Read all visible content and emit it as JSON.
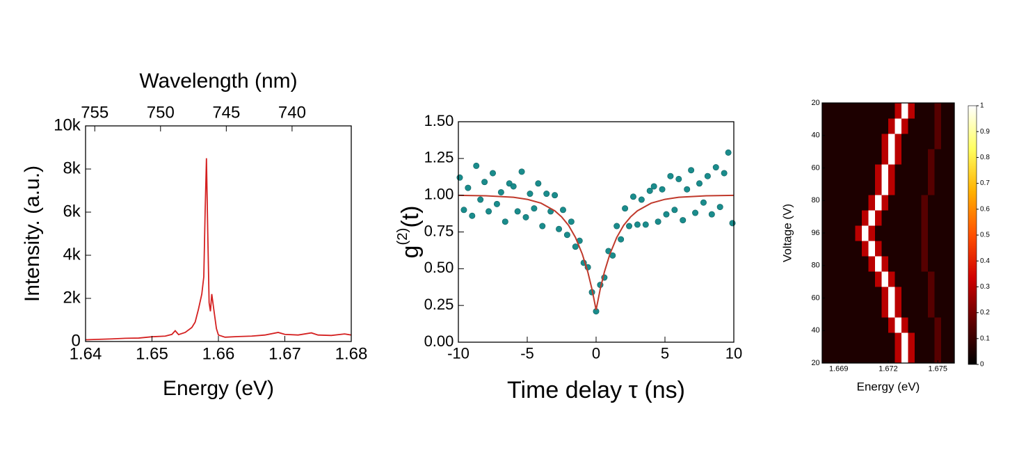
{
  "chart_data": [
    {
      "type": "line",
      "title": "Wavelength (nm)",
      "x_label": "Energy (eV)",
      "y_label": "Intensity. (a.u.)",
      "color": "#d42020",
      "x": [
        1.64,
        1.642,
        1.644,
        1.646,
        1.648,
        1.65,
        1.652,
        1.653,
        1.6535,
        1.654,
        1.655,
        1.656,
        1.6565,
        1.657,
        1.6575,
        1.6578,
        1.658,
        1.6582,
        1.6584,
        1.6586,
        1.6588,
        1.659,
        1.6593,
        1.6597,
        1.66,
        1.661,
        1.663,
        1.665,
        1.667,
        1.669,
        1.67,
        1.672,
        1.674,
        1.675,
        1.677,
        1.679,
        1.68
      ],
      "values": [
        80,
        100,
        120,
        150,
        160,
        220,
        250,
        330,
        500,
        320,
        420,
        650,
        900,
        1500,
        2200,
        3000,
        6000,
        8500,
        5000,
        1800,
        1400,
        2200,
        1500,
        600,
        300,
        200,
        230,
        250,
        300,
        420,
        330,
        300,
        400,
        300,
        280,
        350,
        300
      ],
      "xlim": [
        1.64,
        1.68
      ],
      "xticks": [
        1.64,
        1.65,
        1.66,
        1.67,
        1.68
      ],
      "ylim": [
        0,
        10000
      ],
      "yticks": [
        0,
        {
          "value": 2000,
          "label": "2k"
        },
        {
          "value": 4000,
          "label": "4k"
        },
        {
          "value": 6000,
          "label": "6k"
        },
        {
          "value": 8000,
          "label": "8k"
        },
        {
          "value": 10000,
          "label": "10k"
        }
      ],
      "x2lim": [
        755.7,
        735.5
      ],
      "x2ticks": [
        755,
        750,
        745,
        740
      ]
    },
    {
      "type": "scatter",
      "x_label": "Time delay τ (ns)",
      "y_label": {
        "base": "g",
        "sup": "(2)",
        "rest": "(t)"
      },
      "points": {
        "color": "#1a8c8c",
        "x": [
          -9.9,
          -9.6,
          -9.3,
          -9.0,
          -8.7,
          -8.4,
          -8.1,
          -7.8,
          -7.5,
          -7.2,
          -6.9,
          -6.6,
          -6.3,
          -6.0,
          -5.7,
          -5.4,
          -5.1,
          -4.8,
          -4.5,
          -4.2,
          -3.9,
          -3.6,
          -3.3,
          -3.0,
          -2.7,
          -2.4,
          -2.1,
          -1.8,
          -1.5,
          -1.2,
          -0.9,
          -0.6,
          -0.3,
          0,
          0.3,
          0.6,
          0.9,
          1.2,
          1.5,
          1.8,
          2.1,
          2.4,
          2.7,
          3.0,
          3.3,
          3.6,
          3.9,
          4.2,
          4.5,
          4.8,
          5.1,
          5.4,
          5.7,
          6.0,
          6.3,
          6.6,
          6.9,
          7.2,
          7.5,
          7.8,
          8.1,
          8.4,
          8.7,
          9.0,
          9.3,
          9.6,
          9.9
        ],
        "values": [
          1.12,
          0.9,
          1.05,
          0.86,
          1.2,
          0.97,
          1.09,
          0.89,
          1.15,
          0.94,
          1.02,
          0.82,
          1.08,
          1.06,
          0.89,
          1.16,
          0.85,
          1.01,
          0.91,
          1.08,
          0.79,
          1.01,
          0.89,
          1.0,
          0.77,
          0.9,
          0.73,
          0.82,
          0.65,
          0.69,
          0.54,
          0.51,
          0.34,
          0.21,
          0.39,
          0.44,
          0.62,
          0.59,
          0.79,
          0.7,
          0.91,
          0.79,
          0.99,
          0.8,
          0.97,
          0.8,
          1.03,
          1.06,
          0.82,
          1.04,
          0.87,
          1.13,
          0.9,
          1.11,
          0.83,
          1.04,
          1.17,
          0.88,
          1.08,
          0.95,
          1.13,
          0.87,
          1.19,
          0.92,
          1.15,
          1.29,
          0.81
        ]
      },
      "fit": {
        "color": "#c0392b",
        "x": [
          -10,
          -8,
          -6,
          -5,
          -4,
          -3,
          -2.5,
          -2,
          -1.5,
          -1,
          -0.6,
          -0.3,
          0,
          0.3,
          0.6,
          1,
          1.5,
          2,
          2.5,
          3,
          4,
          5,
          6,
          8,
          10
        ],
        "values": [
          0.999,
          0.996,
          0.986,
          0.972,
          0.946,
          0.894,
          0.852,
          0.795,
          0.713,
          0.599,
          0.477,
          0.361,
          0.22,
          0.361,
          0.477,
          0.599,
          0.713,
          0.795,
          0.852,
          0.894,
          0.946,
          0.972,
          0.986,
          0.996,
          0.999
        ]
      },
      "xlim": [
        -10,
        10
      ],
      "xticks": [
        -10,
        -5,
        0,
        5,
        10
      ],
      "ylim": [
        0,
        1.5
      ],
      "yticks": [
        {
          "value": 0,
          "label": "0.00"
        },
        {
          "value": 0.25,
          "label": "0.25"
        },
        {
          "value": 0.5,
          "label": "0.50"
        },
        {
          "value": 0.75,
          "label": "0.75"
        },
        {
          "value": 1,
          "label": "1.00"
        },
        {
          "value": 1.25,
          "label": "1.25"
        },
        {
          "value": 1.5,
          "label": "1.50"
        }
      ]
    },
    {
      "type": "heatmap",
      "x_label": "Energy (eV)",
      "y_label": "Voltage (V)",
      "xlim": [
        1.668,
        1.676
      ],
      "xticks": [
        1.669,
        1.672,
        1.675
      ],
      "ylim": [
        8,
        0
      ],
      "yticks": [
        {
          "value": 0,
          "label": "20"
        },
        {
          "value": 1,
          "label": "40"
        },
        {
          "value": 2,
          "label": "60"
        },
        {
          "value": 3,
          "label": "80"
        },
        {
          "value": 4,
          "label": "96"
        },
        {
          "value": 5,
          "label": "80"
        },
        {
          "value": 6,
          "label": "60"
        },
        {
          "value": 7,
          "label": "40"
        },
        {
          "value": 8,
          "label": "20"
        }
      ],
      "zlim": [
        0,
        1
      ],
      "cticks": [
        0,
        0.1,
        0.2,
        0.3,
        0.4,
        0.5,
        0.6,
        0.7,
        0.8,
        0.9,
        1
      ],
      "colormap": [
        "#000000",
        "#600000",
        "#d00000",
        "#ff5000",
        "#ffb000",
        "#ffff60",
        "#ffffff"
      ],
      "z": [
        [
          0.05,
          0.05,
          0.05,
          0.05,
          0.05,
          0.05,
          0.05,
          0.05,
          0.05,
          0.05,
          0.05,
          0.3,
          1,
          0.3,
          0.05,
          0.05,
          0.05,
          0.15,
          0.05,
          0.05
        ],
        [
          0.05,
          0.05,
          0.05,
          0.05,
          0.05,
          0.05,
          0.05,
          0.05,
          0.05,
          0.05,
          0.05,
          0.3,
          1,
          0.3,
          0.05,
          0.05,
          0.05,
          0.15,
          0.05,
          0.05
        ],
        [
          0.05,
          0.05,
          0.05,
          0.05,
          0.05,
          0.05,
          0.05,
          0.05,
          0.05,
          0.05,
          0.3,
          1,
          0.3,
          0.05,
          0.05,
          0.05,
          0.05,
          0.15,
          0.05,
          0.05
        ],
        [
          0.05,
          0.05,
          0.05,
          0.05,
          0.05,
          0.05,
          0.05,
          0.05,
          0.05,
          0.3,
          1,
          0.3,
          0.05,
          0.05,
          0.05,
          0.05,
          0.15,
          0.05,
          0.05,
          0.05
        ],
        [
          0.05,
          0.05,
          0.05,
          0.05,
          0.05,
          0.05,
          0.05,
          0.05,
          0.05,
          0.3,
          1,
          0.3,
          0.05,
          0.05,
          0.05,
          0.05,
          0.15,
          0.05,
          0.05,
          0.05
        ],
        [
          0.05,
          0.05,
          0.05,
          0.05,
          0.05,
          0.05,
          0.05,
          0.05,
          0.3,
          1,
          0.3,
          0.05,
          0.05,
          0.05,
          0.05,
          0.05,
          0.15,
          0.05,
          0.05,
          0.05
        ],
        [
          0.05,
          0.05,
          0.05,
          0.05,
          0.05,
          0.05,
          0.05,
          0.3,
          1,
          0.3,
          0.05,
          0.05,
          0.05,
          0.05,
          0.05,
          0.15,
          0.05,
          0.05,
          0.05,
          0.05
        ],
        [
          0.05,
          0.05,
          0.05,
          0.05,
          0.05,
          0.05,
          0.3,
          1,
          0.3,
          0.05,
          0.05,
          0.05,
          0.05,
          0.05,
          0.05,
          0.15,
          0.05,
          0.05,
          0.05,
          0.05
        ],
        [
          0.05,
          0.05,
          0.05,
          0.05,
          0.05,
          0.3,
          1,
          0.3,
          0.05,
          0.05,
          0.05,
          0.05,
          0.05,
          0.05,
          0.05,
          0.15,
          0.05,
          0.05,
          0.05,
          0.05
        ],
        [
          0.05,
          0.05,
          0.05,
          0.05,
          0.05,
          0.05,
          0.3,
          1,
          0.3,
          0.05,
          0.05,
          0.05,
          0.05,
          0.05,
          0.05,
          0.15,
          0.05,
          0.05,
          0.05,
          0.05
        ],
        [
          0.05,
          0.05,
          0.05,
          0.05,
          0.05,
          0.05,
          0.05,
          0.3,
          1,
          0.3,
          0.05,
          0.05,
          0.05,
          0.05,
          0.05,
          0.15,
          0.05,
          0.05,
          0.05,
          0.05
        ],
        [
          0.05,
          0.05,
          0.05,
          0.05,
          0.05,
          0.05,
          0.05,
          0.05,
          0.3,
          1,
          0.3,
          0.05,
          0.05,
          0.05,
          0.05,
          0.05,
          0.15,
          0.05,
          0.05,
          0.05
        ],
        [
          0.05,
          0.05,
          0.05,
          0.05,
          0.05,
          0.05,
          0.05,
          0.05,
          0.3,
          1,
          0.3,
          0.05,
          0.05,
          0.05,
          0.05,
          0.05,
          0.15,
          0.05,
          0.05,
          0.05
        ],
        [
          0.05,
          0.05,
          0.05,
          0.05,
          0.05,
          0.05,
          0.05,
          0.05,
          0.05,
          0.3,
          1,
          0.3,
          0.05,
          0.05,
          0.05,
          0.05,
          0.15,
          0.05,
          0.05,
          0.05
        ],
        [
          0.05,
          0.05,
          0.05,
          0.05,
          0.05,
          0.05,
          0.05,
          0.05,
          0.05,
          0.3,
          1,
          0.3,
          0.05,
          0.05,
          0.05,
          0.05,
          0.05,
          0.15,
          0.05,
          0.05
        ],
        [
          0.05,
          0.05,
          0.05,
          0.05,
          0.05,
          0.05,
          0.05,
          0.05,
          0.05,
          0.05,
          0.3,
          1,
          0.3,
          0.05,
          0.05,
          0.05,
          0.05,
          0.15,
          0.05,
          0.05
        ],
        [
          0.05,
          0.05,
          0.05,
          0.05,
          0.05,
          0.05,
          0.05,
          0.05,
          0.05,
          0.05,
          0.05,
          0.3,
          1,
          0.3,
          0.05,
          0.05,
          0.05,
          0.15,
          0.05,
          0.05
        ]
      ]
    }
  ]
}
